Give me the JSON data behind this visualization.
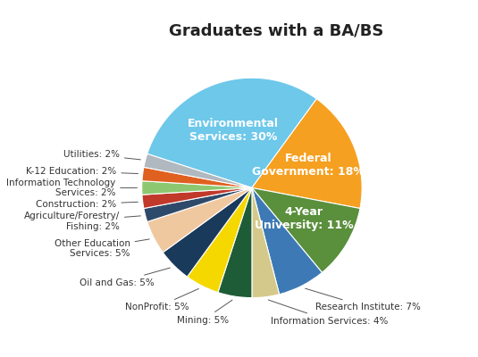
{
  "title": "Graduates with a BA/BS",
  "slices": [
    {
      "label": "Environmental\nServices: 30%",
      "value": 30,
      "color": "#6dc8ea",
      "label_inside": true
    },
    {
      "label": "Federal\nGovernment: 18%",
      "value": 18,
      "color": "#f5a020",
      "label_inside": true
    },
    {
      "label": "4-Year\nUniversity: 11%",
      "value": 11,
      "color": "#5a8f3c",
      "label_inside": true
    },
    {
      "label": "Research Institute: 7%",
      "value": 7,
      "color": "#3d7ab5",
      "label_inside": false
    },
    {
      "label": "Information Services: 4%",
      "value": 4,
      "color": "#d4c98a",
      "label_inside": false
    },
    {
      "label": "Mining: 5%",
      "value": 5,
      "color": "#1e5c38",
      "label_inside": false
    },
    {
      "label": "NonProfit: 5%",
      "value": 5,
      "color": "#f5d800",
      "label_inside": false
    },
    {
      "label": "Oil and Gas: 5%",
      "value": 5,
      "color": "#1a3a5c",
      "label_inside": false
    },
    {
      "label": "Other Education\nServices: 5%",
      "value": 5,
      "color": "#f0c8a0",
      "label_inside": false
    },
    {
      "label": "Agriculture/Forestry/\nFishing: 2%",
      "value": 2,
      "color": "#2e4a6b",
      "label_inside": false
    },
    {
      "label": "Construction: 2%",
      "value": 2,
      "color": "#c0392b",
      "label_inside": false
    },
    {
      "label": "Information Technology\nServices: 2%",
      "value": 2,
      "color": "#8dc870",
      "label_inside": false
    },
    {
      "label": "K-12 Education: 2%",
      "value": 2,
      "color": "#e06020",
      "label_inside": false
    },
    {
      "label": "Utilities: 2%",
      "value": 2,
      "color": "#b0b8c0",
      "label_inside": false
    }
  ],
  "title_fontsize": 13,
  "label_fontsize": 7.5,
  "inside_label_fontsize": 9,
  "background_color": "#ffffff",
  "startangle": -198,
  "label_distance": 1.22
}
